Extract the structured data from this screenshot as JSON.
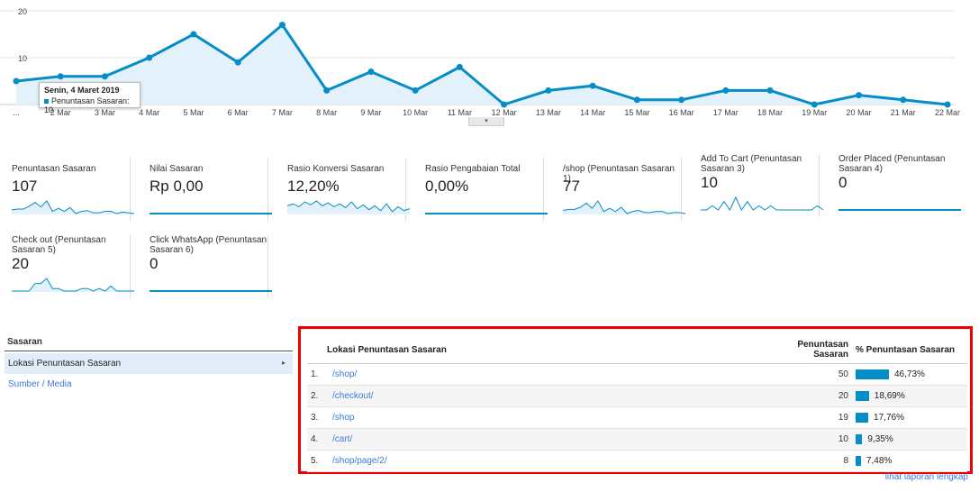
{
  "chart_data": {
    "type": "area",
    "categories": [
      "...",
      "2 Mar",
      "3 Mar",
      "4 Mar",
      "5 Mar",
      "6 Mar",
      "7 Mar",
      "8 Mar",
      "9 Mar",
      "10 Mar",
      "11 Mar",
      "12 Mar",
      "13 Mar",
      "14 Mar",
      "15 Mar",
      "16 Mar",
      "17 Mar",
      "18 Mar",
      "19 Mar",
      "20 Mar",
      "21 Mar",
      "22 Mar"
    ],
    "series": [
      {
        "name": "Penuntasan Sasaran",
        "values": [
          5,
          6,
          6,
          10,
          15,
          9,
          17,
          3,
          7,
          3,
          8,
          0,
          3,
          4,
          1,
          1,
          3,
          3,
          0,
          2,
          1,
          0
        ]
      }
    ],
    "yticks": [
      "20",
      "10"
    ],
    "ylim": [
      0,
      20
    ],
    "grid": true,
    "color": "#058dc7",
    "fill": "#e3f1fa"
  },
  "tooltip": {
    "title": "Senin, 4 Maret 2019",
    "text": "Penuntasan Sasaran: 10"
  },
  "collapse_icon": "▾",
  "metrics": [
    {
      "label": "Penuntasan Sasaran",
      "value": "107",
      "spark": [
        5,
        6,
        6,
        10,
        15,
        9,
        17,
        3,
        7,
        3,
        8,
        0,
        3,
        4,
        1,
        1,
        3,
        3,
        0,
        2,
        1,
        0
      ],
      "filled": true
    },
    {
      "label": "Nilai Sasaran",
      "value": "Rp 0,00",
      "spark": [
        0,
        0,
        0,
        0,
        0,
        0,
        0,
        0,
        0,
        0,
        0,
        0,
        0,
        0,
        0,
        0,
        0,
        0,
        0,
        0,
        0,
        0
      ],
      "filled": false
    },
    {
      "label": "Rasio Konversi Sasaran",
      "value": "12,20%",
      "spark": [
        8,
        10,
        7,
        12,
        9,
        13,
        8,
        11,
        7,
        10,
        6,
        12,
        5,
        9,
        4,
        8,
        3,
        10,
        2,
        7,
        3,
        5
      ],
      "filled": true
    },
    {
      "label": "Rasio Pengabaian Total",
      "value": "0,00%",
      "spark": [
        0,
        0,
        0,
        0,
        0,
        0,
        0,
        0,
        0,
        0,
        0,
        0,
        0,
        0,
        0,
        0,
        0,
        0,
        0,
        0,
        0,
        0
      ],
      "filled": false
    },
    {
      "label": "/shop (Penuntasan Sasaran 1)",
      "value": "77",
      "spark": [
        3,
        4,
        4,
        6,
        10,
        5,
        12,
        2,
        5,
        2,
        6,
        0,
        2,
        3,
        1,
        1,
        2,
        2,
        0,
        1,
        1,
        0
      ],
      "filled": true
    },
    {
      "label": "Add To Cart (Penuntasan Sasaran 3)",
      "value": "10",
      "spark": [
        0,
        0,
        1,
        0,
        2,
        0,
        3,
        0,
        2,
        0,
        1,
        0,
        1,
        0,
        0,
        0,
        0,
        0,
        0,
        0,
        1,
        0
      ],
      "filled": false
    },
    {
      "label": "Order Placed (Penuntasan Sasaran 4)",
      "value": "0",
      "spark": [
        0,
        0,
        0,
        0,
        0,
        0,
        0,
        0,
        0,
        0,
        0,
        0,
        0,
        0,
        0,
        0,
        0,
        0,
        0,
        0,
        0,
        0
      ],
      "filled": false
    },
    {
      "label": "Check out (Penuntasan Sasaran 5)",
      "value": "20",
      "spark": [
        0,
        0,
        0,
        0,
        3,
        3,
        5,
        1,
        1,
        0,
        0,
        0,
        1,
        1,
        0,
        1,
        0,
        2,
        0,
        0,
        0,
        0
      ],
      "filled": true
    },
    {
      "label": "Click WhatsApp (Penuntasan Sasaran 6)",
      "value": "0",
      "spark": [
        0,
        0,
        0,
        0,
        0,
        0,
        0,
        0,
        0,
        0,
        0,
        0,
        0,
        0,
        0,
        0,
        0,
        0,
        0,
        0,
        0,
        0
      ],
      "filled": false
    }
  ],
  "sasaran": {
    "title": "Sasaran",
    "selected": "Lokasi Penuntasan Sasaran",
    "selected_arrow": "▸",
    "link": "Sumber / Media"
  },
  "table": {
    "col1": "Lokasi Penuntasan Sasaran",
    "col2": "Penuntasan Sasaran",
    "col3": "% Penuntasan Sasaran",
    "rows": [
      {
        "num": "1.",
        "page": "/shop/",
        "value": "50",
        "pct": "46,73%",
        "pct_value": 46.73
      },
      {
        "num": "2.",
        "page": "/checkout/",
        "value": "20",
        "pct": "18,69%",
        "pct_value": 18.69
      },
      {
        "num": "3.",
        "page": "/shop",
        "value": "19",
        "pct": "17,76%",
        "pct_value": 17.76
      },
      {
        "num": "4.",
        "page": "/cart/",
        "value": "10",
        "pct": "9,35%",
        "pct_value": 9.35
      },
      {
        "num": "5.",
        "page": "/shop/page/2/",
        "value": "8",
        "pct": "7,48%",
        "pct_value": 7.48
      }
    ]
  },
  "footer_link": "lihat laporan lengkap",
  "colors": {
    "accent": "#058dc7",
    "highlight_border": "#e00000",
    "link": "#3c78d8"
  }
}
